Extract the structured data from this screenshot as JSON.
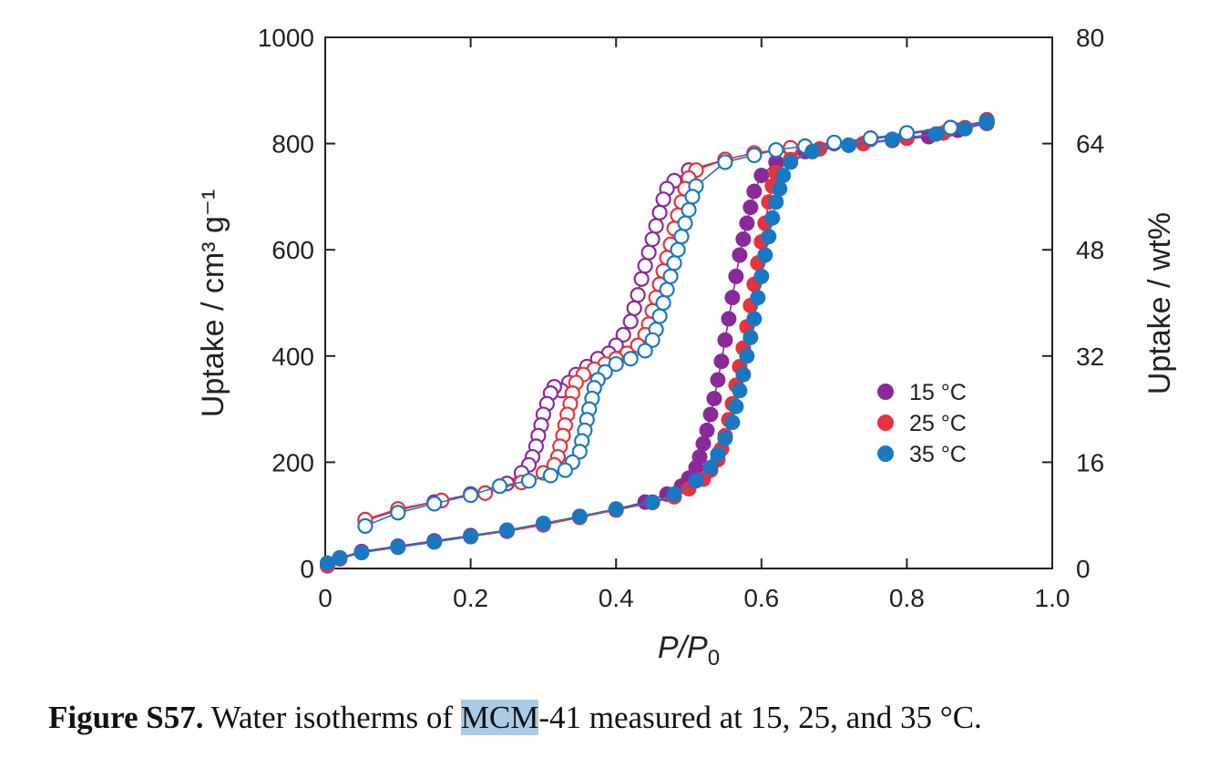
{
  "chart_data": {
    "type": "scatter",
    "xlabel": "P/P",
    "xlabel_sub": "0",
    "ylabel": "Uptake / cm³ g⁻¹",
    "y2label": "Uptake / wt%",
    "xlim": [
      0,
      1.0
    ],
    "ylim": [
      0,
      1000
    ],
    "y2lim": [
      0,
      80
    ],
    "x_ticks": [
      "0",
      "0.2",
      "0.4",
      "0.6",
      "0.8",
      "1.0"
    ],
    "x_tick_values": [
      0,
      0.2,
      0.4,
      0.6,
      0.8,
      1.0
    ],
    "y_ticks": [
      "0",
      "200",
      "400",
      "600",
      "800",
      "1000"
    ],
    "y_tick_values": [
      0,
      200,
      400,
      600,
      800,
      1000
    ],
    "y2_ticks": [
      "0",
      "16",
      "32",
      "48",
      "64",
      "80"
    ],
    "y2_tick_values": [
      0,
      16,
      32,
      48,
      64,
      80
    ],
    "grid": false,
    "legend_position": "right-middle",
    "series": [
      {
        "name": "15 °C",
        "color": "#8a2a9a",
        "adsorption": [
          [
            0.003,
            8
          ],
          [
            0.02,
            20
          ],
          [
            0.05,
            32
          ],
          [
            0.1,
            42
          ],
          [
            0.15,
            52
          ],
          [
            0.2,
            62
          ],
          [
            0.25,
            72
          ],
          [
            0.3,
            84
          ],
          [
            0.35,
            98
          ],
          [
            0.4,
            112
          ],
          [
            0.44,
            125
          ],
          [
            0.47,
            140
          ],
          [
            0.49,
            155
          ],
          [
            0.5,
            170
          ],
          [
            0.51,
            190
          ],
          [
            0.515,
            210
          ],
          [
            0.52,
            235
          ],
          [
            0.525,
            260
          ],
          [
            0.53,
            290
          ],
          [
            0.535,
            320
          ],
          [
            0.54,
            355
          ],
          [
            0.545,
            390
          ],
          [
            0.55,
            430
          ],
          [
            0.555,
            470
          ],
          [
            0.56,
            510
          ],
          [
            0.565,
            550
          ],
          [
            0.57,
            590
          ],
          [
            0.575,
            620
          ],
          [
            0.58,
            650
          ],
          [
            0.585,
            680
          ],
          [
            0.59,
            710
          ],
          [
            0.6,
            740
          ],
          [
            0.62,
            765
          ],
          [
            0.66,
            785
          ],
          [
            0.72,
            797
          ],
          [
            0.78,
            806
          ],
          [
            0.83,
            813
          ],
          [
            0.87,
            825
          ],
          [
            0.91,
            838
          ]
        ],
        "desorption": [
          [
            0.91,
            840
          ],
          [
            0.86,
            828
          ],
          [
            0.8,
            818
          ],
          [
            0.75,
            808
          ],
          [
            0.7,
            800
          ],
          [
            0.64,
            790
          ],
          [
            0.59,
            782
          ],
          [
            0.55,
            770
          ],
          [
            0.5,
            750
          ],
          [
            0.48,
            730
          ],
          [
            0.47,
            715
          ],
          [
            0.465,
            695
          ],
          [
            0.46,
            670
          ],
          [
            0.455,
            645
          ],
          [
            0.45,
            620
          ],
          [
            0.445,
            595
          ],
          [
            0.44,
            570
          ],
          [
            0.435,
            545
          ],
          [
            0.43,
            515
          ],
          [
            0.425,
            490
          ],
          [
            0.42,
            465
          ],
          [
            0.41,
            440
          ],
          [
            0.4,
            420
          ],
          [
            0.39,
            405
          ],
          [
            0.375,
            395
          ],
          [
            0.36,
            380
          ],
          [
            0.345,
            365
          ],
          [
            0.335,
            350
          ],
          [
            0.325,
            335
          ],
          [
            0.315,
            342
          ],
          [
            0.31,
            330
          ],
          [
            0.305,
            310
          ],
          [
            0.3,
            290
          ],
          [
            0.297,
            270
          ],
          [
            0.293,
            250
          ],
          [
            0.29,
            230
          ],
          [
            0.285,
            210
          ],
          [
            0.28,
            195
          ],
          [
            0.27,
            180
          ],
          [
            0.25,
            160
          ],
          [
            0.2,
            140
          ],
          [
            0.15,
            125
          ],
          [
            0.1,
            110
          ],
          [
            0.055,
            90
          ]
        ]
      },
      {
        "name": "25 °C",
        "color": "#e8323c",
        "adsorption": [
          [
            0.003,
            5
          ],
          [
            0.02,
            18
          ],
          [
            0.05,
            30
          ],
          [
            0.1,
            40
          ],
          [
            0.15,
            50
          ],
          [
            0.2,
            60
          ],
          [
            0.25,
            70
          ],
          [
            0.3,
            82
          ],
          [
            0.35,
            96
          ],
          [
            0.4,
            110
          ],
          [
            0.45,
            124
          ],
          [
            0.48,
            135
          ],
          [
            0.5,
            150
          ],
          [
            0.52,
            168
          ],
          [
            0.53,
            185
          ],
          [
            0.54,
            205
          ],
          [
            0.545,
            225
          ],
          [
            0.55,
            250
          ],
          [
            0.555,
            280
          ],
          [
            0.56,
            310
          ],
          [
            0.565,
            345
          ],
          [
            0.57,
            380
          ],
          [
            0.575,
            415
          ],
          [
            0.58,
            455
          ],
          [
            0.585,
            495
          ],
          [
            0.59,
            535
          ],
          [
            0.595,
            575
          ],
          [
            0.6,
            615
          ],
          [
            0.605,
            650
          ],
          [
            0.61,
            690
          ],
          [
            0.615,
            720
          ],
          [
            0.62,
            745
          ],
          [
            0.64,
            770
          ],
          [
            0.68,
            790
          ],
          [
            0.74,
            800
          ],
          [
            0.8,
            810
          ],
          [
            0.85,
            820
          ],
          [
            0.88,
            830
          ],
          [
            0.91,
            845
          ]
        ],
        "desorption": [
          [
            0.91,
            842
          ],
          [
            0.86,
            830
          ],
          [
            0.8,
            820
          ],
          [
            0.75,
            810
          ],
          [
            0.7,
            802
          ],
          [
            0.64,
            792
          ],
          [
            0.59,
            782
          ],
          [
            0.55,
            770
          ],
          [
            0.51,
            750
          ],
          [
            0.5,
            735
          ],
          [
            0.495,
            715
          ],
          [
            0.49,
            690
          ],
          [
            0.485,
            665
          ],
          [
            0.48,
            640
          ],
          [
            0.475,
            610
          ],
          [
            0.47,
            585
          ],
          [
            0.465,
            560
          ],
          [
            0.46,
            535
          ],
          [
            0.455,
            510
          ],
          [
            0.45,
            485
          ],
          [
            0.445,
            460
          ],
          [
            0.44,
            440
          ],
          [
            0.43,
            420
          ],
          [
            0.415,
            405
          ],
          [
            0.4,
            395
          ],
          [
            0.385,
            385
          ],
          [
            0.37,
            375
          ],
          [
            0.355,
            365
          ],
          [
            0.345,
            350
          ],
          [
            0.34,
            330
          ],
          [
            0.337,
            310
          ],
          [
            0.333,
            290
          ],
          [
            0.33,
            270
          ],
          [
            0.327,
            250
          ],
          [
            0.323,
            230
          ],
          [
            0.32,
            210
          ],
          [
            0.315,
            195
          ],
          [
            0.3,
            180
          ],
          [
            0.27,
            162
          ],
          [
            0.22,
            142
          ],
          [
            0.16,
            128
          ],
          [
            0.1,
            112
          ],
          [
            0.055,
            92
          ]
        ]
      },
      {
        "name": "35 °C",
        "color": "#1a78c2",
        "adsorption": [
          [
            0.003,
            10
          ],
          [
            0.02,
            20
          ],
          [
            0.05,
            30
          ],
          [
            0.1,
            40
          ],
          [
            0.15,
            50
          ],
          [
            0.2,
            60
          ],
          [
            0.25,
            72
          ],
          [
            0.3,
            85
          ],
          [
            0.35,
            98
          ],
          [
            0.4,
            112
          ],
          [
            0.45,
            125
          ],
          [
            0.48,
            140
          ],
          [
            0.51,
            165
          ],
          [
            0.53,
            190
          ],
          [
            0.54,
            215
          ],
          [
            0.55,
            245
          ],
          [
            0.56,
            275
          ],
          [
            0.565,
            305
          ],
          [
            0.57,
            335
          ],
          [
            0.575,
            365
          ],
          [
            0.58,
            400
          ],
          [
            0.585,
            435
          ],
          [
            0.59,
            470
          ],
          [
            0.595,
            510
          ],
          [
            0.6,
            550
          ],
          [
            0.605,
            590
          ],
          [
            0.61,
            625
          ],
          [
            0.615,
            660
          ],
          [
            0.62,
            690
          ],
          [
            0.625,
            715
          ],
          [
            0.63,
            740
          ],
          [
            0.64,
            765
          ],
          [
            0.67,
            785
          ],
          [
            0.72,
            797
          ],
          [
            0.78,
            808
          ],
          [
            0.84,
            818
          ],
          [
            0.88,
            828
          ],
          [
            0.91,
            840
          ]
        ],
        "desorption": [
          [
            0.91,
            842
          ],
          [
            0.86,
            830
          ],
          [
            0.8,
            820
          ],
          [
            0.75,
            810
          ],
          [
            0.7,
            802
          ],
          [
            0.66,
            795
          ],
          [
            0.62,
            788
          ],
          [
            0.59,
            778
          ],
          [
            0.55,
            765
          ],
          [
            0.51,
            720
          ],
          [
            0.505,
            700
          ],
          [
            0.5,
            675
          ],
          [
            0.495,
            650
          ],
          [
            0.49,
            625
          ],
          [
            0.485,
            600
          ],
          [
            0.48,
            575
          ],
          [
            0.475,
            550
          ],
          [
            0.47,
            525
          ],
          [
            0.465,
            500
          ],
          [
            0.46,
            475
          ],
          [
            0.455,
            450
          ],
          [
            0.45,
            430
          ],
          [
            0.44,
            410
          ],
          [
            0.42,
            395
          ],
          [
            0.4,
            385
          ],
          [
            0.385,
            370
          ],
          [
            0.375,
            355
          ],
          [
            0.37,
            340
          ],
          [
            0.367,
            320
          ],
          [
            0.363,
            300
          ],
          [
            0.36,
            280
          ],
          [
            0.357,
            260
          ],
          [
            0.353,
            240
          ],
          [
            0.35,
            220
          ],
          [
            0.34,
            200
          ],
          [
            0.33,
            185
          ],
          [
            0.31,
            175
          ],
          [
            0.28,
            165
          ],
          [
            0.24,
            155
          ],
          [
            0.2,
            138
          ],
          [
            0.15,
            122
          ],
          [
            0.1,
            105
          ],
          [
            0.055,
            80
          ]
        ]
      }
    ]
  },
  "caption": {
    "label": "Figure S57.",
    "text_before": " Water isotherms of ",
    "highlight": "MCM",
    "text_after": "-41 measured at 15, 25, and 35 °C."
  }
}
